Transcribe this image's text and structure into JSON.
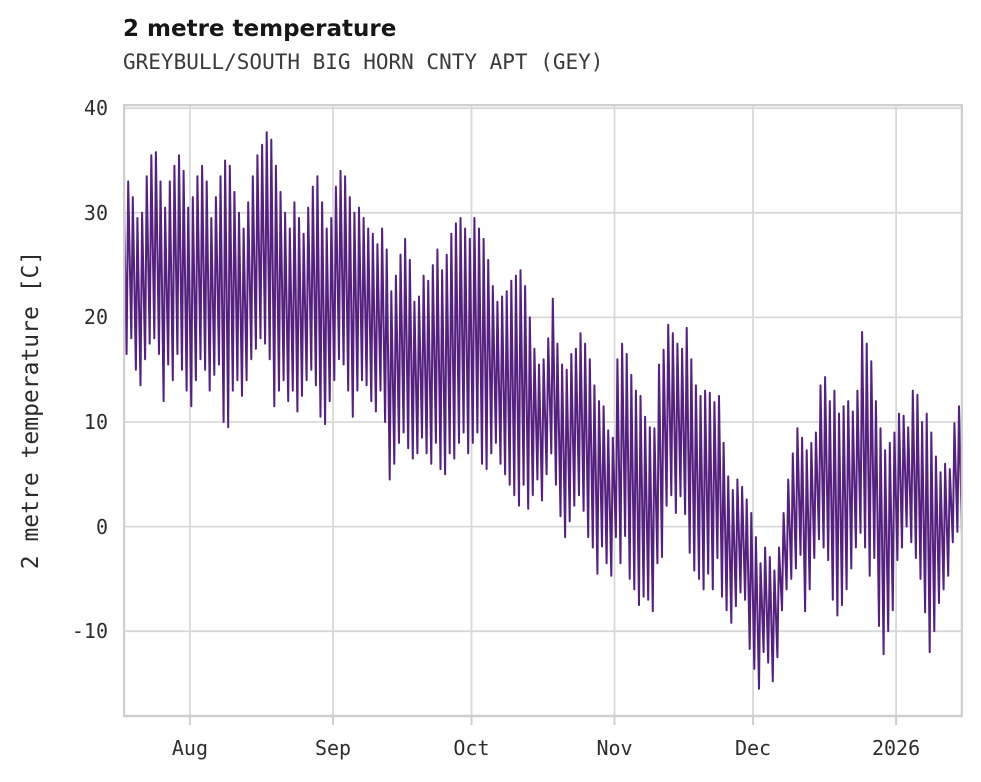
{
  "header": {
    "title": "2 metre temperature",
    "subtitle": "GREYBULL/SOUTH BIG HORN CNTY APT (GEY)"
  },
  "chart_data": {
    "type": "line",
    "title": "2 metre temperature",
    "subtitle": "GREYBULL/SOUTH BIG HORN CNTY APT (GEY)",
    "station": "GREYBULL/SOUTH BIG HORN CNTY APT (GEY)",
    "ylabel": "2 metre temperature [C]",
    "xlabel": "",
    "unit": "C",
    "grid": true,
    "legend": false,
    "line_color": "#55217e",
    "grid_color": "#d9d9d9",
    "border_color": "#cfcfcf",
    "tick_color": "#2e2e2e",
    "ylim": [
      -18.2,
      40.4
    ],
    "yticks": [
      40,
      30,
      20,
      10,
      0,
      -10
    ],
    "xtick_labels": [
      "Aug",
      "Sep",
      "Oct",
      "Nov",
      "Dec",
      "2026"
    ],
    "x_start": "Jul 17",
    "x_end": "Jan 15",
    "x_total_days": 182,
    "month_tick_day_index": [
      15,
      46,
      76,
      107,
      137,
      168
    ],
    "sampling_note": "hourly series shown; encoded here as estimated daily min/max",
    "dates": [
      "Jul 17",
      "Jul 18",
      "Jul 19",
      "Jul 20",
      "Jul 21",
      "Jul 22",
      "Jul 23",
      "Jul 24",
      "Jul 25",
      "Jul 26",
      "Jul 27",
      "Jul 28",
      "Jul 29",
      "Jul 30",
      "Jul 31",
      "Aug 1",
      "Aug 2",
      "Aug 3",
      "Aug 4",
      "Aug 5",
      "Aug 6",
      "Aug 7",
      "Aug 8",
      "Aug 9",
      "Aug 10",
      "Aug 11",
      "Aug 12",
      "Aug 13",
      "Aug 14",
      "Aug 15",
      "Aug 16",
      "Aug 17",
      "Aug 18",
      "Aug 19",
      "Aug 20",
      "Aug 21",
      "Aug 22",
      "Aug 23",
      "Aug 24",
      "Aug 25",
      "Aug 26",
      "Aug 27",
      "Aug 28",
      "Aug 29",
      "Aug 30",
      "Aug 31",
      "Sep 1",
      "Sep 2",
      "Sep 3",
      "Sep 4",
      "Sep 5",
      "Sep 6",
      "Sep 7",
      "Sep 8",
      "Sep 9",
      "Sep 10",
      "Sep 11",
      "Sep 12",
      "Sep 13",
      "Sep 14",
      "Sep 15",
      "Sep 16",
      "Sep 17",
      "Sep 18",
      "Sep 19",
      "Sep 20",
      "Sep 21",
      "Sep 22",
      "Sep 23",
      "Sep 24",
      "Sep 25",
      "Sep 26",
      "Sep 27",
      "Sep 28",
      "Sep 29",
      "Sep 30",
      "Oct 1",
      "Oct 2",
      "Oct 3",
      "Oct 4",
      "Oct 5",
      "Oct 6",
      "Oct 7",
      "Oct 8",
      "Oct 9",
      "Oct 10",
      "Oct 11",
      "Oct 12",
      "Oct 13",
      "Oct 14",
      "Oct 15",
      "Oct 16",
      "Oct 17",
      "Oct 18",
      "Oct 19",
      "Oct 20",
      "Oct 21",
      "Oct 22",
      "Oct 23",
      "Oct 24",
      "Oct 25",
      "Oct 26",
      "Oct 27",
      "Oct 28",
      "Oct 29",
      "Oct 30",
      "Oct 31",
      "Nov 1",
      "Nov 2",
      "Nov 3",
      "Nov 4",
      "Nov 5",
      "Nov 6",
      "Nov 7",
      "Nov 8",
      "Nov 9",
      "Nov 10",
      "Nov 11",
      "Nov 12",
      "Nov 13",
      "Nov 14",
      "Nov 15",
      "Nov 16",
      "Nov 17",
      "Nov 18",
      "Nov 19",
      "Nov 20",
      "Nov 21",
      "Nov 22",
      "Nov 23",
      "Nov 24",
      "Nov 25",
      "Nov 26",
      "Nov 27",
      "Nov 28",
      "Nov 29",
      "Nov 30",
      "Dec 1",
      "Dec 2",
      "Dec 3",
      "Dec 4",
      "Dec 5",
      "Dec 6",
      "Dec 7",
      "Dec 8",
      "Dec 9",
      "Dec 10",
      "Dec 11",
      "Dec 12",
      "Dec 13",
      "Dec 14",
      "Dec 15",
      "Dec 16",
      "Dec 17",
      "Dec 18",
      "Dec 19",
      "Dec 20",
      "Dec 21",
      "Dec 22",
      "Dec 23",
      "Dec 24",
      "Dec 25",
      "Dec 26",
      "Dec 27",
      "Dec 28",
      "Dec 29",
      "Dec 30",
      "Dec 31",
      "Jan 1",
      "Jan 2",
      "Jan 3",
      "Jan 4",
      "Jan 5",
      "Jan 6",
      "Jan 7",
      "Jan 8",
      "Jan 9",
      "Jan 10",
      "Jan 11",
      "Jan 12",
      "Jan 13",
      "Jan 14",
      "Jan 15"
    ],
    "daily_min": [
      16,
      16.5,
      18,
      15,
      13.5,
      16,
      17.5,
      18,
      16.5,
      12,
      15.5,
      14,
      16.5,
      15,
      13,
      11.5,
      14,
      16,
      15,
      13,
      14.5,
      15.5,
      10,
      9.5,
      13,
      14,
      12.5,
      14,
      16,
      17,
      18,
      17.5,
      16,
      11.5,
      13,
      14,
      12,
      13,
      11,
      12.5,
      14,
      15,
      13.5,
      10.5,
      9.8,
      12,
      14,
      16,
      15.5,
      13,
      10.5,
      13,
      14,
      13.5,
      12,
      11,
      13,
      10,
      4.5,
      6,
      8,
      9,
      7.5,
      6.5,
      7,
      8.5,
      7,
      6,
      8,
      5.5,
      5,
      7,
      6.5,
      8,
      9,
      7,
      8,
      9,
      6,
      5.5,
      7,
      8,
      6,
      5,
      4,
      3,
      2,
      4,
      1.7,
      3,
      4.5,
      2.5,
      5,
      7,
      4,
      1,
      -1,
      0.5,
      2,
      3,
      1.5,
      -1,
      -2,
      -4.5,
      -1.9,
      -3.5,
      -4.7,
      -1,
      -3.5,
      -0.9,
      -5,
      -6,
      -7.5,
      -6.7,
      -7,
      -8.1,
      -3.5,
      -2.9,
      2,
      3,
      1.3,
      2.9,
      1.2,
      -2.5,
      -4.2,
      -5,
      -6,
      -4.5,
      -6,
      -3,
      -6.7,
      -8,
      -9.2,
      -7.6,
      -6.3,
      -7,
      -11.7,
      -13.6,
      -15.5,
      -12,
      -13,
      -14.8,
      -12.5,
      -8,
      -6,
      -5,
      -4,
      -2.7,
      -8.1,
      -6,
      -3,
      -1.2,
      -2,
      -3.2,
      -7,
      -8.5,
      -7.5,
      -6,
      -4,
      -2,
      -0.6,
      -2,
      -4.7,
      -3,
      -9.5,
      -12.2,
      -10,
      -8,
      -3.2,
      -2,
      0,
      -1.5,
      -3,
      -5,
      -8.2,
      -12,
      -10,
      -7.3,
      -6,
      -4.7,
      -1.5,
      -0.5,
      -1
    ],
    "daily_max": [
      33.5,
      33,
      31.5,
      29.5,
      30,
      33.5,
      35.5,
      35.8,
      33,
      30.5,
      33,
      34.5,
      35.5,
      34,
      30.5,
      31.5,
      33.5,
      34.5,
      33,
      29.5,
      31.5,
      33.5,
      35,
      34.5,
      32,
      30,
      28.5,
      31,
      33.5,
      35.5,
      36.5,
      37.7,
      37,
      34.5,
      32,
      30,
      28.5,
      31,
      29.5,
      28,
      30.5,
      32.5,
      33.5,
      31,
      28.5,
      29.5,
      32.5,
      34,
      33.5,
      31.5,
      30,
      30.5,
      29.5,
      28.5,
      28,
      27,
      28.5,
      26.5,
      22.5,
      24,
      26,
      27.5,
      25.5,
      21.5,
      22,
      24,
      23.5,
      25,
      26.5,
      24.5,
      26,
      28,
      29,
      29.5,
      28.5,
      27.5,
      29.5,
      28.5,
      27.5,
      25.5,
      23,
      21.5,
      22,
      22.5,
      23.5,
      24,
      24.5,
      23,
      20,
      17,
      15.5,
      16,
      18,
      21.8,
      17.5,
      15.5,
      15,
      16.5,
      17,
      18.5,
      17.5,
      16,
      13.5,
      12,
      11.5,
      9.2,
      8.5,
      16,
      17.5,
      16.5,
      14.5,
      13,
      12.5,
      10.5,
      9.5,
      9.4,
      15.5,
      16.9,
      19.3,
      18.5,
      17.5,
      17,
      19,
      16,
      13.5,
      12.5,
      13,
      12.8,
      11.9,
      12.5,
      8,
      4.8,
      3.5,
      4.5,
      3.8,
      2.6,
      1.3,
      -1,
      -3.5,
      -2,
      -2.9,
      -4.2,
      -2,
      1.3,
      4.5,
      7,
      9.4,
      8.5,
      7.3,
      8,
      9,
      13.5,
      14.3,
      12,
      13,
      10.8,
      11.5,
      12,
      11,
      13,
      18.6,
      17.5,
      15.8,
      12,
      9.4,
      7.3,
      8,
      9,
      10.8,
      10.6,
      9.5,
      13,
      12.6,
      10,
      10.8,
      9,
      6.7,
      5.2,
      6,
      5.5,
      9.9,
      11.5,
      12.9
    ]
  }
}
